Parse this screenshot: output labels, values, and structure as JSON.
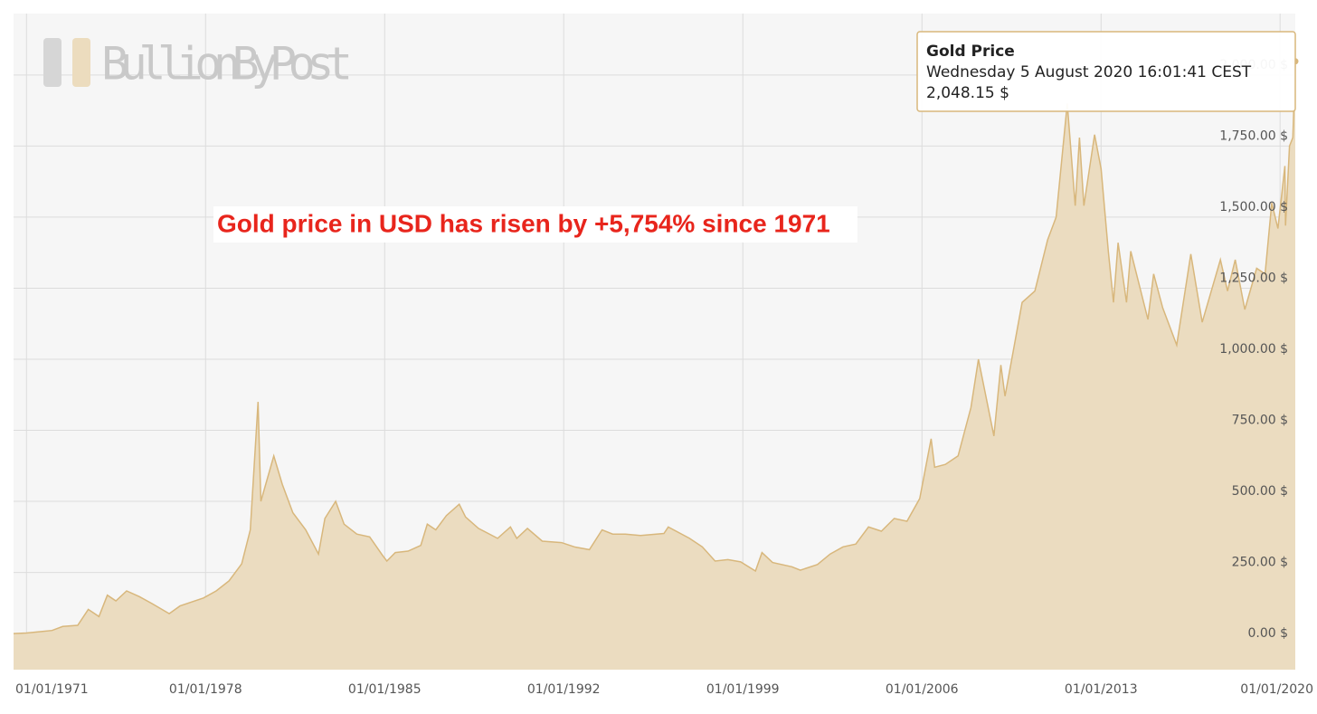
{
  "chart_data": {
    "type": "area",
    "logo": "BullionByPost",
    "annotation": "Gold price in USD has risen by +5,754% since 1971",
    "tooltip": {
      "date": "Wednesday 5 August 2020 16:01:41 CEST",
      "value": "2,048.15 $"
    },
    "grid": true,
    "xlim": [
      "1970-07-01",
      "2020-08-05"
    ],
    "ylim": [
      -92,
      2216
    ],
    "xticks": [
      {
        "value": "1971-01-01",
        "label": "01/01/1971"
      },
      {
        "value": "1978-01-01",
        "label": "01/01/1978"
      },
      {
        "value": "1985-01-01",
        "label": "01/01/1985"
      },
      {
        "value": "1992-01-01",
        "label": "01/01/1992"
      },
      {
        "value": "1999-01-01",
        "label": "01/01/1999"
      },
      {
        "value": "2006-01-01",
        "label": "01/01/2006"
      },
      {
        "value": "2013-01-01",
        "label": "01/01/2013"
      },
      {
        "value": "2020-01-01",
        "label": "01/01/2020"
      }
    ],
    "yticks": [
      {
        "value": 0,
        "label": "0.00 $"
      },
      {
        "value": 250,
        "label": "250.00 $"
      },
      {
        "value": 500,
        "label": "500.00 $"
      },
      {
        "value": 750,
        "label": "750.00 $"
      },
      {
        "value": 1000,
        "label": "1,000.00 $"
      },
      {
        "value": 1250,
        "label": "1,250.00 $"
      },
      {
        "value": 1500,
        "label": "1,500.00 $"
      },
      {
        "value": 1750,
        "label": "1,750.00 $"
      },
      {
        "value": 2000,
        "label": "2,000.00 $"
      }
    ],
    "series": [
      {
        "name": "Gold Price",
        "color": "#d8b77c",
        "fill": "#ebdcc0",
        "x": [
          "1970-07-01",
          "1971-01-01",
          "1971-08-01",
          "1972-01-01",
          "1972-06-01",
          "1973-01-01",
          "1973-06-01",
          "1973-11-01",
          "1974-03-01",
          "1974-07-01",
          "1974-12-01",
          "1975-06-01",
          "1975-12-01",
          "1976-08-01",
          "1977-01-01",
          "1977-12-01",
          "1978-06-01",
          "1978-12-01",
          "1979-06-01",
          "1979-10-01",
          "1980-01-21",
          "1980-03-01",
          "1980-09-01",
          "1981-01-01",
          "1981-06-01",
          "1981-12-01",
          "1982-06-01",
          "1982-09-01",
          "1983-02-01",
          "1983-06-01",
          "1983-12-01",
          "1984-06-01",
          "1984-12-01",
          "1985-02-01",
          "1985-06-01",
          "1985-12-01",
          "1986-06-01",
          "1986-09-01",
          "1987-01-01",
          "1987-06-01",
          "1987-12-01",
          "1988-03-01",
          "1988-09-01",
          "1989-06-01",
          "1989-12-01",
          "1990-03-01",
          "1990-08-01",
          "1991-03-01",
          "1991-12-01",
          "1992-06-01",
          "1993-01-01",
          "1993-07-01",
          "1993-12-01",
          "1994-06-01",
          "1995-01-01",
          "1995-12-01",
          "1996-02-01",
          "1996-12-01",
          "1997-06-01",
          "1997-12-01",
          "1998-06-01",
          "1998-12-01",
          "1999-07-01",
          "1999-10-01",
          "2000-03-01",
          "2000-12-01",
          "2001-04-01",
          "2001-12-01",
          "2002-06-01",
          "2002-12-01",
          "2003-06-01",
          "2003-12-01",
          "2004-06-01",
          "2004-12-01",
          "2005-06-01",
          "2005-12-01",
          "2006-05-12",
          "2006-07-01",
          "2006-12-01",
          "2007-06-01",
          "2007-12-01",
          "2008-03-17",
          "2008-10-24",
          "2009-02-01",
          "2009-04-01",
          "2009-12-01",
          "2010-06-01",
          "2010-12-01",
          "2011-04-01",
          "2011-09-06",
          "2011-12-29",
          "2012-02-28",
          "2012-05-01",
          "2012-10-01",
          "2013-01-01",
          "2013-04-15",
          "2013-06-28",
          "2013-09-01",
          "2013-12-31",
          "2014-03-01",
          "2014-11-01",
          "2015-01-22",
          "2015-06-01",
          "2015-12-17",
          "2016-07-06",
          "2016-12-15",
          "2017-09-01",
          "2017-12-12",
          "2018-04-01",
          "2018-08-16",
          "2019-02-01",
          "2019-06-01",
          "2019-09-04",
          "2019-12-01",
          "2020-03-09",
          "2020-03-19",
          "2020-05-15",
          "2020-07-01",
          "2020-08-05"
        ],
        "values": [
          35,
          37,
          42,
          46,
          60,
          64,
          120,
          95,
          170,
          150,
          185,
          165,
          140,
          105,
          132,
          160,
          185,
          220,
          280,
          400,
          850,
          500,
          660,
          560,
          460,
          400,
          315,
          440,
          500,
          420,
          385,
          375,
          310,
          290,
          320,
          325,
          345,
          420,
          400,
          450,
          490,
          445,
          405,
          370,
          410,
          370,
          405,
          360,
          355,
          340,
          330,
          400,
          385,
          385,
          380,
          387,
          410,
          370,
          340,
          290,
          295,
          287,
          255,
          320,
          285,
          270,
          258,
          278,
          315,
          340,
          350,
          410,
          395,
          440,
          430,
          510,
          720,
          620,
          630,
          660,
          830,
          1000,
          730,
          980,
          870,
          1200,
          1240,
          1420,
          1500,
          1900,
          1540,
          1780,
          1540,
          1790,
          1670,
          1380,
          1200,
          1410,
          1200,
          1380,
          1140,
          1300,
          1180,
          1050,
          1370,
          1130,
          1350,
          1240,
          1350,
          1175,
          1320,
          1300,
          1550,
          1460,
          1680,
          1470,
          1750,
          1780,
          2048.15
        ]
      }
    ]
  }
}
